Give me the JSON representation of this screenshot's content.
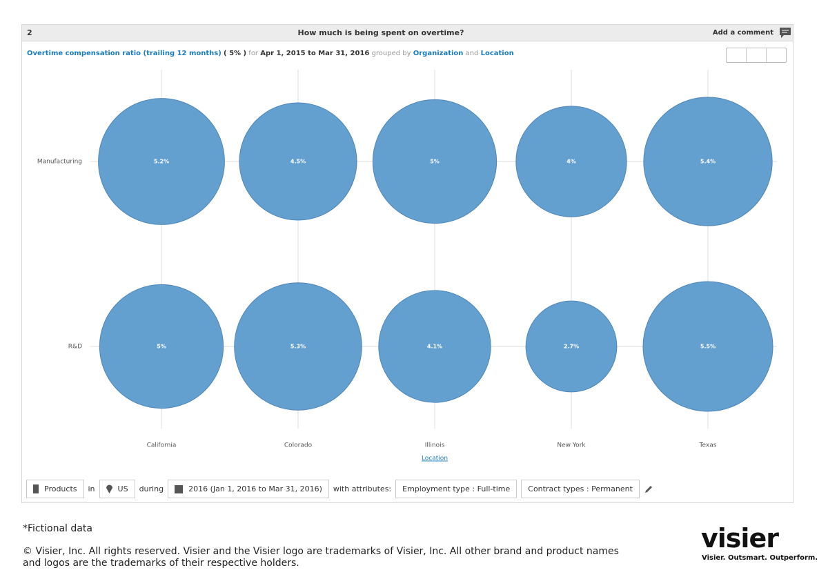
{
  "panel": {
    "number": "2",
    "title": "How much is being spent on overtime?",
    "add_comment": "Add a comment"
  },
  "subtitle": {
    "metric": "Overtime compensation ratio (trailing 12 months)",
    "metric_value": "( 5% )",
    "for": "for",
    "period": "Apr 1, 2015 to Mar 31, 2016",
    "grouped_by": "grouped by",
    "group1": "Organization",
    "and": "and",
    "group2": "Location"
  },
  "chart_data": {
    "type": "bubble",
    "x_label": "Location",
    "categories": [
      "California",
      "Colorado",
      "Illinois",
      "New York",
      "Texas"
    ],
    "series": [
      {
        "name": "Manufacturing",
        "color": "#639fcf",
        "values": [
          5.2,
          4.5,
          5,
          4,
          5.4
        ],
        "value_labels": [
          "5.2%",
          "4.5%",
          "5%",
          "4%",
          "5.4%"
        ]
      },
      {
        "name": "R&D",
        "color": "#639fcf",
        "values": [
          5,
          5.3,
          4.1,
          2.7,
          5.5
        ],
        "value_labels": [
          "5%",
          "5.3%",
          "4.1%",
          "2.7%",
          "5.5%"
        ]
      }
    ],
    "grid": true
  },
  "filters": {
    "population": "Products",
    "in": "in",
    "location": "US",
    "during": "during",
    "period": "2016 (Jan 1, 2016 to Mar 31, 2016)",
    "with_attributes": "with attributes:",
    "attribute1": "Employment type : Full-time",
    "attribute2": "Contract types : Permanent"
  },
  "footer": {
    "note": "*Fictional data",
    "copyright": "© Visier, Inc. All rights reserved. Visier and the Visier logo are trademarks of Visier, Inc. All other brand and product names and logos are the trademarks of their respective holders.",
    "logo": "visier",
    "tagline": "Visier. Outsmart. Outperform."
  }
}
